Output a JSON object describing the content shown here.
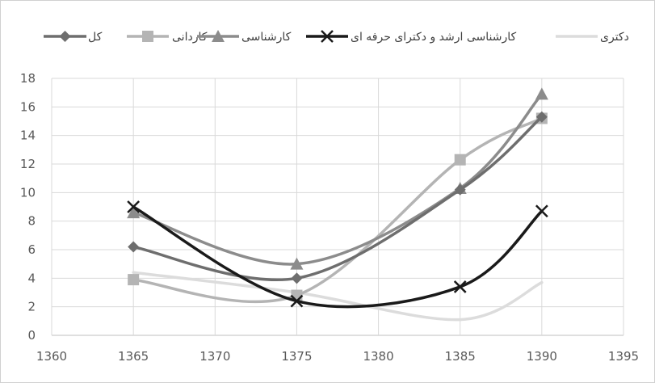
{
  "chart_data": {
    "type": "line",
    "smooth": true,
    "title": "",
    "xlabel": "",
    "ylabel": "",
    "xlim": [
      1360,
      1395
    ],
    "ylim": [
      0,
      18
    ],
    "x_ticks": [
      1360,
      1365,
      1370,
      1375,
      1380,
      1385,
      1390,
      1395
    ],
    "y_ticks": [
      0,
      2,
      4,
      6,
      8,
      10,
      12,
      14,
      16,
      18
    ],
    "grid": true,
    "legend_position": "top",
    "series": [
      {
        "name": "کل",
        "marker": "diamond",
        "color": "#6e6e6e",
        "x": [
          1365,
          1375,
          1385,
          1390
        ],
        "y": [
          6.2,
          4.0,
          10.2,
          15.3
        ]
      },
      {
        "name": "کاردانی",
        "marker": "square",
        "color": "#b4b4b4",
        "x": [
          1365,
          1375,
          1385,
          1390
        ],
        "y": [
          3.9,
          2.8,
          12.3,
          15.2
        ]
      },
      {
        "name": "کارشناسی",
        "marker": "triangle",
        "color": "#8c8c8c",
        "x": [
          1365,
          1375,
          1385,
          1390
        ],
        "y": [
          8.6,
          5.0,
          10.3,
          16.9
        ]
      },
      {
        "name": "کارشناسی ارشد و دکترای حرفه ای",
        "marker": "x",
        "color": "#1a1a1a",
        "x": [
          1365,
          1375,
          1385,
          1390
        ],
        "y": [
          9.0,
          2.4,
          3.4,
          8.7
        ]
      },
      {
        "name": "دکتری",
        "marker": "none",
        "color": "#dcdcdc",
        "x": [
          1365,
          1375,
          1385,
          1390
        ],
        "y": [
          4.4,
          3.0,
          1.1,
          3.7
        ]
      }
    ]
  }
}
